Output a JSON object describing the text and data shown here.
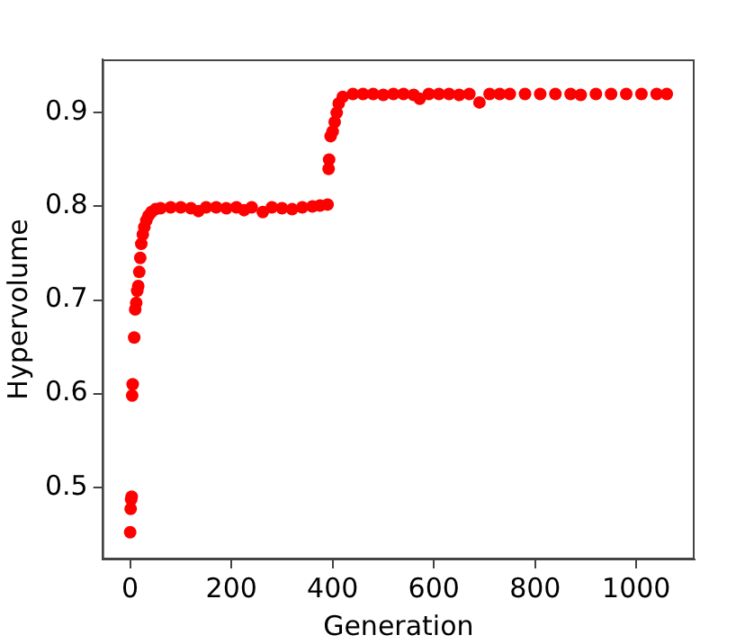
{
  "chart_data": {
    "type": "scatter",
    "xlabel": "Generation",
    "ylabel": "Hypervolume",
    "xlim": [
      -55,
      1115
    ],
    "ylim": [
      0.423,
      0.957
    ],
    "xticks": [
      0,
      200,
      400,
      600,
      800,
      1000
    ],
    "yticks": [
      0.5,
      0.6,
      0.7,
      0.8,
      0.9
    ],
    "grid": false,
    "legend": false,
    "marker": "circle",
    "series": [
      {
        "color": "#ff0000",
        "x": [
          0,
          1,
          2,
          3,
          4,
          5,
          8,
          10,
          12,
          14,
          16,
          18,
          20,
          22,
          25,
          28,
          32,
          36,
          42,
          50,
          60,
          80,
          100,
          120,
          135,
          150,
          170,
          190,
          210,
          225,
          240,
          262,
          280,
          300,
          320,
          340,
          360,
          375,
          390,
          392,
          393,
          396,
          400,
          404,
          408,
          412,
          420,
          440,
          460,
          480,
          500,
          520,
          540,
          560,
          572,
          590,
          610,
          630,
          650,
          670,
          690,
          710,
          730,
          750,
          780,
          810,
          840,
          870,
          890,
          920,
          950,
          980,
          1010,
          1040,
          1060
        ],
        "values": [
          0.452,
          0.477,
          0.487,
          0.49,
          0.598,
          0.61,
          0.66,
          0.69,
          0.697,
          0.71,
          0.715,
          0.73,
          0.745,
          0.76,
          0.77,
          0.778,
          0.785,
          0.79,
          0.794,
          0.797,
          0.798,
          0.799,
          0.799,
          0.798,
          0.795,
          0.799,
          0.799,
          0.798,
          0.799,
          0.796,
          0.799,
          0.794,
          0.799,
          0.798,
          0.797,
          0.799,
          0.8,
          0.801,
          0.802,
          0.84,
          0.85,
          0.875,
          0.88,
          0.89,
          0.9,
          0.91,
          0.917,
          0.92,
          0.92,
          0.92,
          0.919,
          0.92,
          0.92,
          0.919,
          0.915,
          0.92,
          0.92,
          0.92,
          0.919,
          0.92,
          0.911,
          0.92,
          0.92,
          0.92,
          0.92,
          0.92,
          0.92,
          0.92,
          0.919,
          0.92,
          0.92,
          0.92,
          0.92,
          0.92,
          0.92
        ]
      }
    ]
  }
}
